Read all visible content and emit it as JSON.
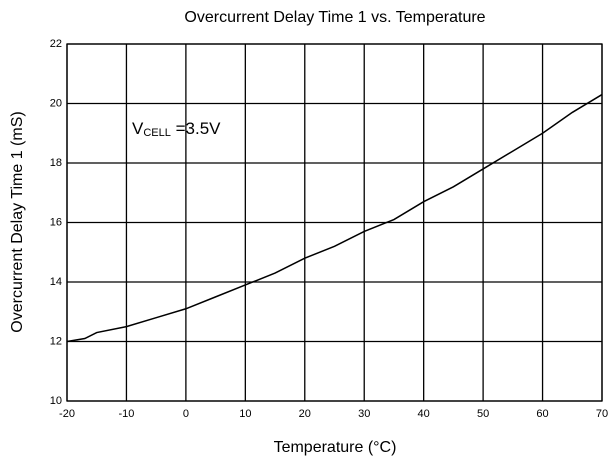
{
  "chart_data": {
    "type": "line",
    "title": "Overcurrent Delay Time 1 vs. Temperature",
    "x_label": "Temperature (°C)",
    "y_label": "Overcurrent Delay Time 1 (mS)",
    "annotation": {
      "text": "V",
      "sub": "CELL",
      "rest": " =3.5V"
    },
    "x": [
      -20,
      -17,
      -15,
      -10,
      -5,
      0,
      5,
      10,
      15,
      20,
      25,
      30,
      35,
      40,
      45,
      50,
      55,
      60,
      65,
      70
    ],
    "series": [
      {
        "name": "VCELL =3.5V",
        "color": "#000000",
        "values": [
          12.0,
          12.1,
          12.3,
          12.5,
          12.8,
          13.1,
          13.5,
          13.9,
          14.3,
          14.8,
          15.2,
          15.7,
          16.1,
          16.7,
          17.2,
          17.8,
          18.4,
          19.0,
          19.7,
          20.3
        ]
      }
    ],
    "xlim": [
      -20,
      70
    ],
    "xticks": [
      -20,
      -10,
      0,
      10,
      20,
      30,
      40,
      50,
      60,
      70
    ],
    "ylim": [
      10,
      22
    ],
    "yticks": [
      10,
      12,
      14,
      16,
      18,
      20,
      22
    ],
    "grid": true
  }
}
